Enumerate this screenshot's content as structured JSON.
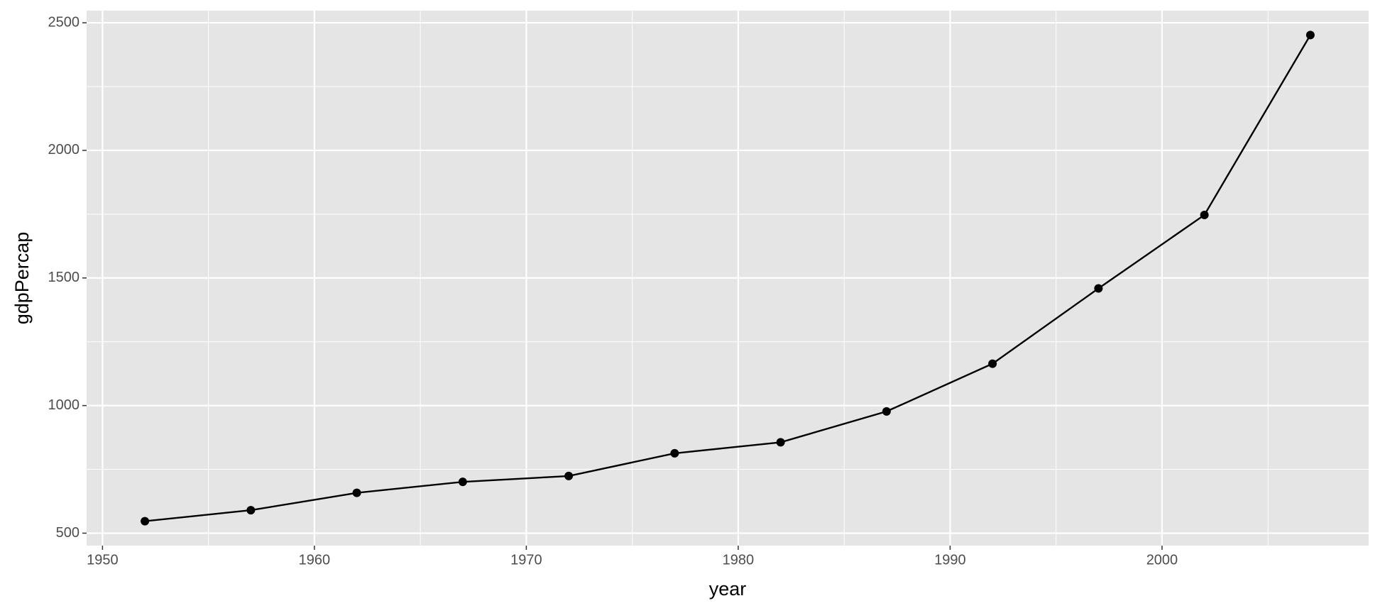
{
  "chart_data": {
    "type": "line",
    "x_label": "year",
    "y_label": "gdpPercap",
    "x": [
      1952,
      1957,
      1962,
      1967,
      1972,
      1977,
      1982,
      1987,
      1992,
      1997,
      2002,
      2007
    ],
    "values": [
      547,
      590,
      658,
      701,
      724,
      813,
      856,
      977,
      1164,
      1459,
      1747,
      2452
    ],
    "color": "#000000",
    "xlim": [
      1949.25,
      2009.75
    ],
    "xticks": [
      1950,
      1960,
      1970,
      1980,
      1990,
      2000
    ],
    "ylim": [
      451.3,
      2547.5
    ],
    "yticks": [
      500,
      1000,
      1500,
      2000,
      2500
    ],
    "grid": true,
    "markers": true
  }
}
